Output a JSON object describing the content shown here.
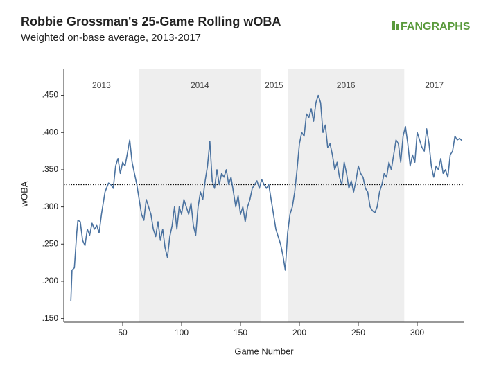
{
  "chart_data": {
    "type": "line",
    "title": "Robbie Grossman's 25-Game Rolling wOBA",
    "subtitle": "Weighted on-base average, 2013-2017",
    "logo": "FANGRAPHS",
    "x_label": "Game Number",
    "y_label": "wOBA",
    "xlim": [
      0,
      340
    ],
    "ylim": [
      0.145,
      0.485
    ],
    "xticks": [
      50,
      100,
      150,
      200,
      250,
      300
    ],
    "yticks": [
      {
        "value": 0.15,
        "label": ".150"
      },
      {
        "value": 0.2,
        "label": ".200"
      },
      {
        "value": 0.25,
        "label": ".250"
      },
      {
        "value": 0.3,
        "label": ".300"
      },
      {
        "value": 0.35,
        "label": ".350"
      },
      {
        "value": 0.4,
        "label": ".400"
      },
      {
        "value": 0.45,
        "label": ".450"
      }
    ],
    "reference_line": 0.33,
    "seasons": [
      {
        "label": "2013",
        "start": 0,
        "end": 64,
        "shaded": false
      },
      {
        "label": "2014",
        "start": 64,
        "end": 167,
        "shaded": true
      },
      {
        "label": "2015",
        "start": 167,
        "end": 190,
        "shaded": false
      },
      {
        "label": "2016",
        "start": 190,
        "end": 289,
        "shaded": true
      },
      {
        "label": "2017",
        "start": 289,
        "end": 340,
        "shaded": false
      }
    ],
    "series": [
      {
        "name": "wOBA",
        "color": "#4a72a0",
        "x": [
          6,
          7,
          9,
          11,
          12,
          14,
          16,
          18,
          20,
          22,
          24,
          26,
          28,
          30,
          32,
          35,
          38,
          40,
          42,
          44,
          46,
          48,
          50,
          52,
          54,
          56,
          58,
          60,
          62,
          64,
          66,
          68,
          70,
          72,
          74,
          76,
          78,
          80,
          82,
          84,
          86,
          88,
          90,
          92,
          94,
          96,
          98,
          100,
          102,
          104,
          106,
          108,
          110,
          112,
          114,
          116,
          118,
          120,
          122,
          124,
          126,
          128,
          130,
          132,
          134,
          136,
          138,
          140,
          142,
          144,
          146,
          148,
          150,
          152,
          154,
          156,
          158,
          160,
          162,
          164,
          166,
          168,
          170,
          172,
          174,
          176,
          178,
          180,
          182,
          184,
          186,
          188,
          190,
          192,
          194,
          196,
          198,
          200,
          202,
          204,
          206,
          208,
          210,
          212,
          214,
          216,
          218,
          220,
          222,
          224,
          226,
          228,
          230,
          232,
          234,
          236,
          238,
          240,
          242,
          244,
          246,
          248,
          250,
          252,
          254,
          256,
          258,
          260,
          262,
          264,
          266,
          268,
          270,
          272,
          274,
          276,
          278,
          280,
          282,
          284,
          286,
          288,
          290,
          292,
          294,
          296,
          298,
          300,
          302,
          304,
          306,
          308,
          310,
          312,
          314,
          316,
          318,
          320,
          322,
          324,
          326,
          328,
          330,
          332,
          334,
          336,
          338
        ],
        "values": [
          0.173,
          0.215,
          0.218,
          0.265,
          0.282,
          0.28,
          0.255,
          0.248,
          0.27,
          0.262,
          0.278,
          0.27,
          0.275,
          0.265,
          0.29,
          0.32,
          0.332,
          0.33,
          0.325,
          0.355,
          0.365,
          0.345,
          0.36,
          0.355,
          0.372,
          0.39,
          0.36,
          0.345,
          0.33,
          0.31,
          0.29,
          0.282,
          0.31,
          0.3,
          0.29,
          0.27,
          0.26,
          0.28,
          0.255,
          0.27,
          0.245,
          0.232,
          0.26,
          0.275,
          0.3,
          0.27,
          0.3,
          0.29,
          0.31,
          0.3,
          0.29,
          0.305,
          0.275,
          0.262,
          0.3,
          0.32,
          0.31,
          0.335,
          0.355,
          0.388,
          0.335,
          0.325,
          0.35,
          0.33,
          0.345,
          0.34,
          0.35,
          0.33,
          0.34,
          0.32,
          0.3,
          0.315,
          0.29,
          0.3,
          0.28,
          0.3,
          0.31,
          0.325,
          0.33,
          0.335,
          0.325,
          0.337,
          0.33,
          0.325,
          0.33,
          0.31,
          0.29,
          0.27,
          0.26,
          0.25,
          0.235,
          0.215,
          0.265,
          0.29,
          0.3,
          0.32,
          0.35,
          0.385,
          0.4,
          0.395,
          0.425,
          0.42,
          0.432,
          0.415,
          0.44,
          0.45,
          0.44,
          0.4,
          0.41,
          0.38,
          0.385,
          0.37,
          0.35,
          0.36,
          0.34,
          0.33,
          0.36,
          0.345,
          0.325,
          0.335,
          0.32,
          0.335,
          0.355,
          0.345,
          0.34,
          0.325,
          0.32,
          0.3,
          0.295,
          0.292,
          0.3,
          0.32,
          0.33,
          0.345,
          0.34,
          0.36,
          0.35,
          0.37,
          0.39,
          0.385,
          0.36,
          0.395,
          0.408,
          0.385,
          0.355,
          0.37,
          0.36,
          0.4,
          0.39,
          0.38,
          0.375,
          0.405,
          0.385,
          0.355,
          0.34,
          0.355,
          0.35,
          0.365,
          0.345,
          0.35,
          0.34,
          0.37,
          0.375,
          0.395,
          0.39,
          0.392,
          0.389
        ]
      }
    ]
  }
}
